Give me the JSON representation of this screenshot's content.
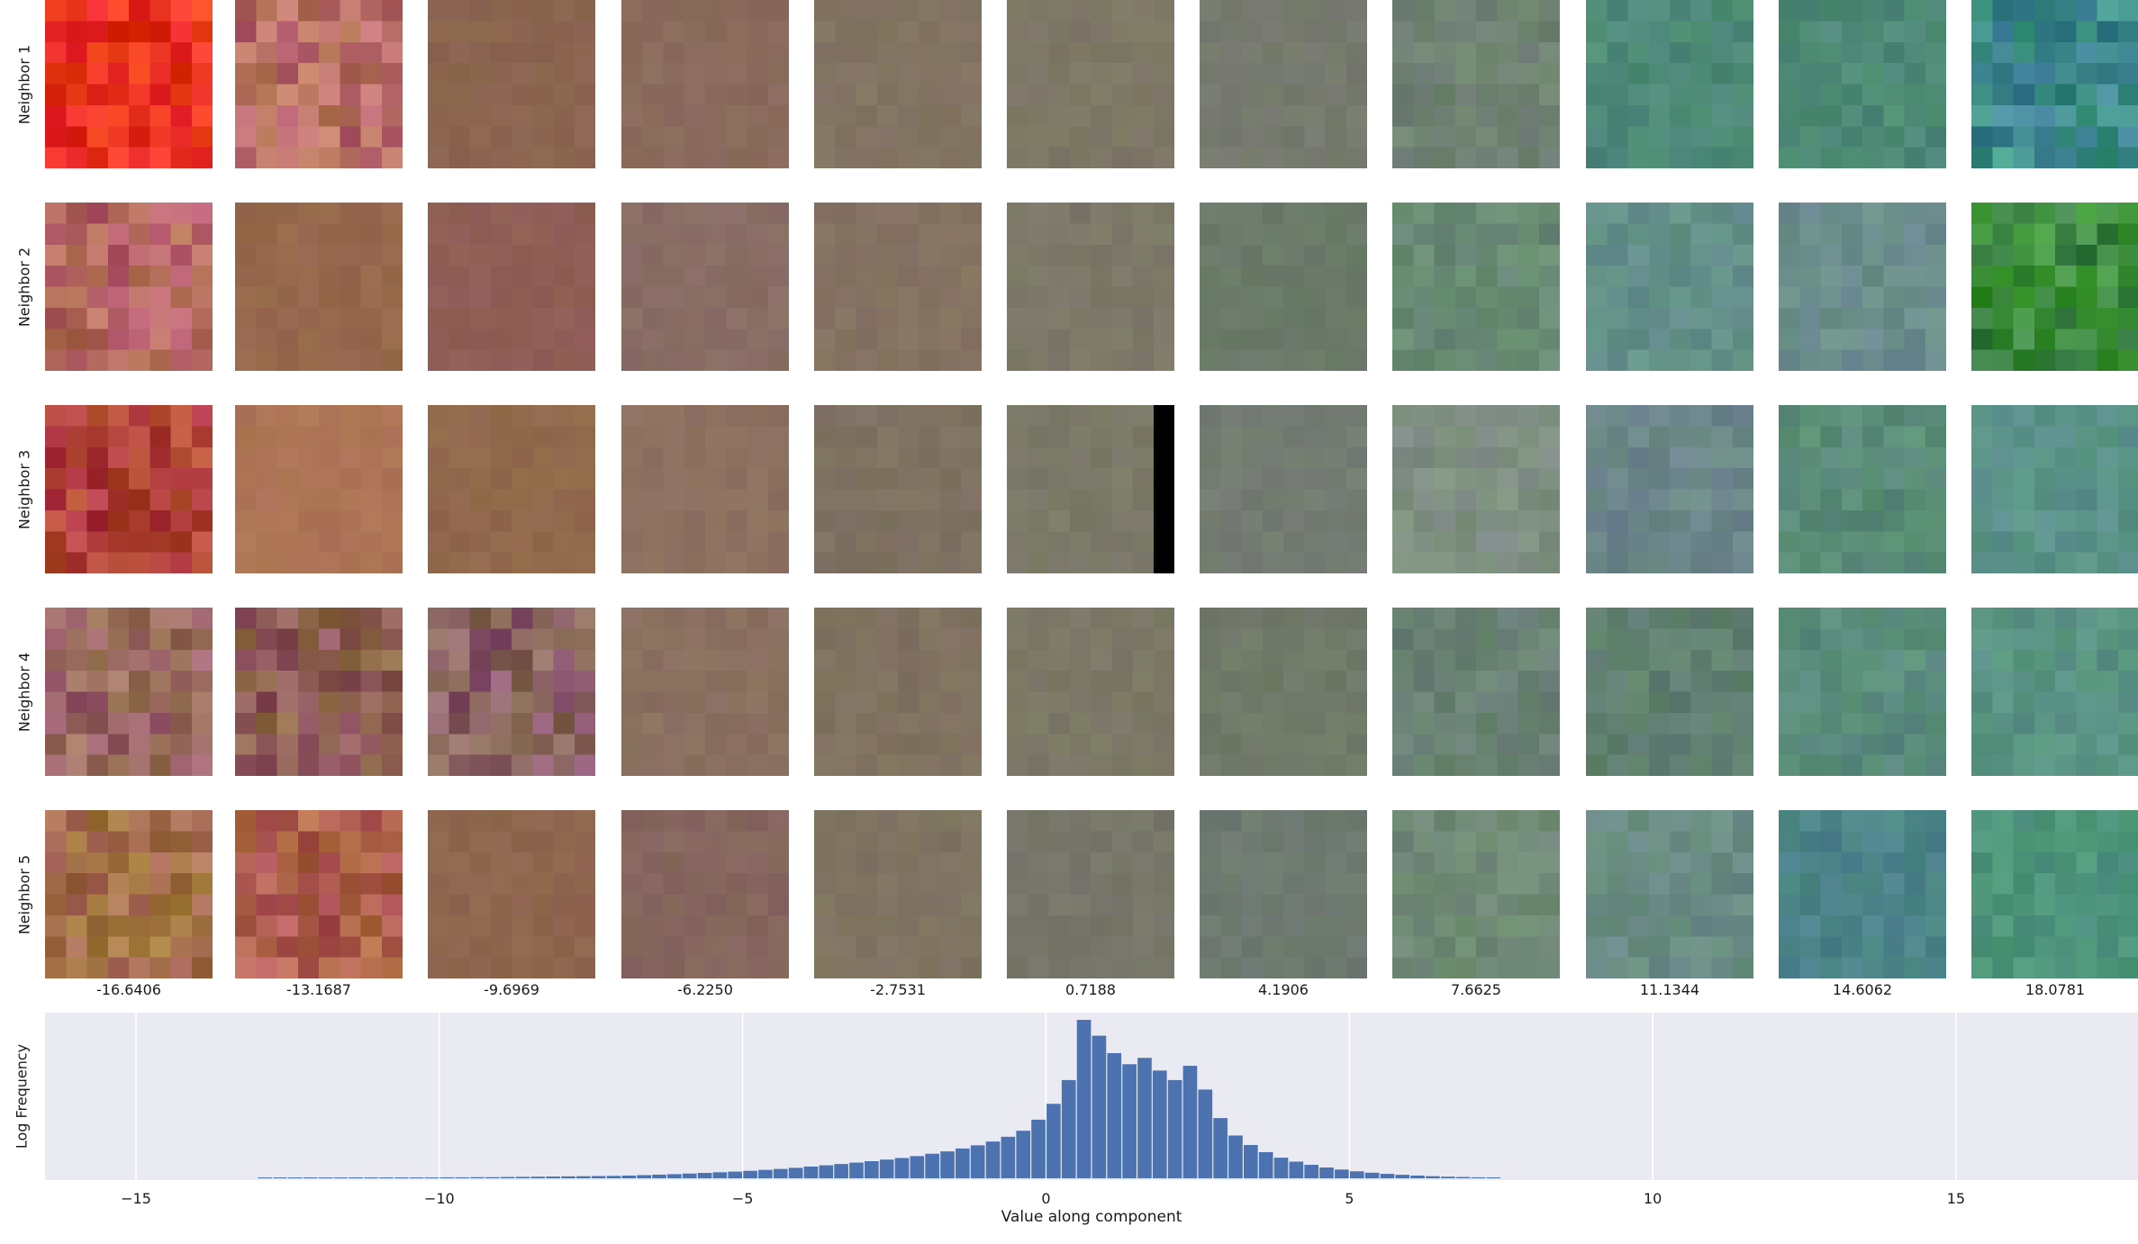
{
  "chart_data": {
    "type": "image-grid-with-histogram",
    "rows": [
      {
        "label": "Neighbor 1"
      },
      {
        "label": "Neighbor 2"
      },
      {
        "label": "Neighbor 3"
      },
      {
        "label": "Neighbor 4"
      },
      {
        "label": "Neighbor 5"
      }
    ],
    "columns": [
      "-16.6406",
      "-13.1687",
      "-9.6969",
      "-6.2250",
      "-2.7531",
      "0.7188",
      "4.1906",
      "7.6625",
      "11.1344",
      "14.6062",
      "18.0781"
    ],
    "cell_colors": [
      [
        "#e8301f",
        "#b86e66",
        "#8c6650",
        "#8a6a5c",
        "#827462",
        "#7e7866",
        "#767a6e",
        "#6e8072",
        "#4e8a78",
        "#4e8a76",
        "#3e8a8c"
      ],
      [
        "#b26460",
        "#96684c",
        "#905e56",
        "#8a6e66",
        "#857362",
        "#7c7868",
        "#6a7a68",
        "#688a74",
        "#64908a",
        "#6a8c8c",
        "#3a8a3a"
      ],
      [
        "#b0403a",
        "#ad7456",
        "#91694c",
        "#8d7160",
        "#7f7262",
        "#7b7968",
        "#747c72",
        "#7e8e82",
        "#6c868a",
        "#5a8c78",
        "#5a9288"
      ],
      [
        "#9a6862",
        "#8e5e54",
        "#8a6064",
        "#8a7060",
        "#807260",
        "#7c7866",
        "#707a68",
        "#6a8274",
        "#608070",
        "#5a8c7c",
        "#5a9484"
      ],
      [
        "#a4704a",
        "#ae5e4e",
        "#8e664e",
        "#86665e",
        "#807462",
        "#77766a",
        "#6e7a70",
        "#708a76",
        "#6a8c84",
        "#4c8488",
        "#4e947c"
      ]
    ],
    "hist": {
      "xlabel": "Value along component",
      "ylabel": "Log Frequency",
      "xlim": [
        -16.5,
        18.0
      ],
      "xticks": [
        "-15",
        "-10",
        "-5",
        "0",
        "5",
        "10",
        "15"
      ],
      "bar_color": "#4c72b0",
      "bin_width": 0.25,
      "bin_centers": [
        -12.875,
        -12.625,
        -12.375,
        -12.125,
        -11.875,
        -11.625,
        -11.375,
        -11.125,
        -10.875,
        -10.625,
        -10.375,
        -10.125,
        -9.875,
        -9.625,
        -9.375,
        -9.125,
        -8.875,
        -8.625,
        -8.375,
        -8.125,
        -7.875,
        -7.625,
        -7.375,
        -7.125,
        -6.875,
        -6.625,
        -6.375,
        -6.125,
        -5.875,
        -5.625,
        -5.375,
        -5.125,
        -4.875,
        -4.625,
        -4.375,
        -4.125,
        -3.875,
        -3.625,
        -3.375,
        -3.125,
        -2.875,
        -2.625,
        -2.375,
        -2.125,
        -1.875,
        -1.625,
        -1.375,
        -1.125,
        -0.875,
        -0.625,
        -0.375,
        -0.125,
        0.125,
        0.375,
        0.625,
        0.875,
        1.125,
        1.375,
        1.625,
        1.875,
        2.125,
        2.375,
        2.625,
        2.875,
        3.125,
        3.375,
        3.625,
        3.875,
        4.125,
        4.375,
        4.625,
        4.875,
        5.125,
        5.375,
        5.625,
        5.875,
        6.125,
        6.375,
        6.625,
        6.875,
        7.125,
        7.375
      ],
      "heights": [
        0.003,
        0.003,
        0.003,
        0.003,
        0.003,
        0.004,
        0.004,
        0.004,
        0.004,
        0.004,
        0.005,
        0.005,
        0.006,
        0.006,
        0.007,
        0.007,
        0.008,
        0.009,
        0.01,
        0.011,
        0.012,
        0.013,
        0.014,
        0.015,
        0.017,
        0.02,
        0.023,
        0.026,
        0.03,
        0.034,
        0.038,
        0.042,
        0.047,
        0.053,
        0.059,
        0.066,
        0.074,
        0.082,
        0.09,
        0.099,
        0.108,
        0.118,
        0.128,
        0.14,
        0.155,
        0.17,
        0.188,
        0.208,
        0.232,
        0.262,
        0.3,
        0.37,
        0.47,
        0.62,
        1.0,
        0.9,
        0.79,
        0.72,
        0.76,
        0.68,
        0.62,
        0.71,
        0.56,
        0.38,
        0.27,
        0.21,
        0.165,
        0.13,
        0.105,
        0.085,
        0.068,
        0.055,
        0.044,
        0.035,
        0.028,
        0.022,
        0.017,
        0.013,
        0.01,
        0.008,
        0.006,
        0.005
      ]
    }
  }
}
